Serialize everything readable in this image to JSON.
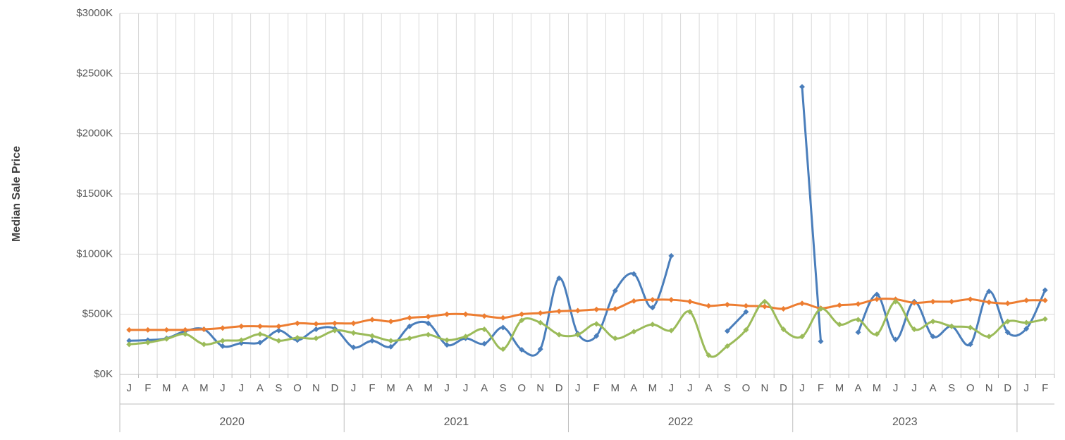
{
  "chart_data": {
    "type": "line",
    "y_label": "Median Sale Price",
    "categories": [
      "J",
      "F",
      "M",
      "A",
      "M",
      "J",
      "J",
      "A",
      "S",
      "O",
      "N",
      "D",
      "J",
      "F",
      "M",
      "A",
      "M",
      "J",
      "J",
      "A",
      "S",
      "O",
      "N",
      "D",
      "J",
      "F",
      "M",
      "A",
      "M",
      "J",
      "J",
      "A",
      "S",
      "O",
      "N",
      "D",
      "J",
      "F",
      "M",
      "A",
      "M",
      "J",
      "J",
      "A",
      "S",
      "O",
      "N",
      "D",
      "J",
      "F"
    ],
    "x_groups": [
      {
        "label": "2020",
        "start": 0,
        "count": 12
      },
      {
        "label": "2021",
        "start": 12,
        "count": 12
      },
      {
        "label": "2022",
        "start": 24,
        "count": 12
      },
      {
        "label": "2023",
        "start": 36,
        "count": 12
      }
    ],
    "series": [
      {
        "color": "#4a7ebb",
        "values": [
          280,
          285,
          300,
          360,
          375,
          235,
          260,
          265,
          365,
          285,
          375,
          380,
          225,
          280,
          230,
          400,
          425,
          245,
          300,
          255,
          390,
          205,
          210,
          800,
          340,
          320,
          695,
          835,
          555,
          985,
          null,
          null,
          360,
          520,
          null,
          null,
          2390,
          275,
          null,
          350,
          665,
          290,
          605,
          315,
          400,
          250,
          690,
          350,
          380,
          700
        ]
      },
      {
        "color": "#ed7d31",
        "values": [
          370,
          370,
          370,
          370,
          375,
          385,
          400,
          400,
          400,
          425,
          420,
          425,
          425,
          455,
          440,
          470,
          480,
          500,
          500,
          485,
          470,
          500,
          510,
          525,
          530,
          540,
          545,
          610,
          620,
          620,
          605,
          570,
          580,
          570,
          565,
          545,
          590,
          550,
          575,
          585,
          625,
          625,
          595,
          605,
          605,
          625,
          600,
          590,
          615,
          615
        ]
      },
      {
        "color": "#9bbb59",
        "values": [
          250,
          265,
          295,
          335,
          250,
          280,
          285,
          335,
          280,
          305,
          300,
          365,
          345,
          320,
          280,
          300,
          330,
          285,
          315,
          375,
          210,
          450,
          430,
          330,
          330,
          420,
          300,
          355,
          415,
          365,
          520,
          160,
          235,
          370,
          605,
          375,
          315,
          545,
          415,
          455,
          335,
          605,
          375,
          440,
          400,
          390,
          315,
          440,
          430,
          460
        ]
      }
    ],
    "ylim": [
      0,
      3000
    ],
    "yticks": [
      {
        "value": 0,
        "label": "$0K"
      },
      {
        "value": 500,
        "label": "$500K"
      },
      {
        "value": 1000,
        "label": "$1000K"
      },
      {
        "value": 1500,
        "label": "$1500K"
      },
      {
        "value": 2000,
        "label": "$2000K"
      },
      {
        "value": 2500,
        "label": "$2500K"
      },
      {
        "value": 3000,
        "label": "$3000K"
      }
    ],
    "grid": true,
    "smooth": true
  }
}
